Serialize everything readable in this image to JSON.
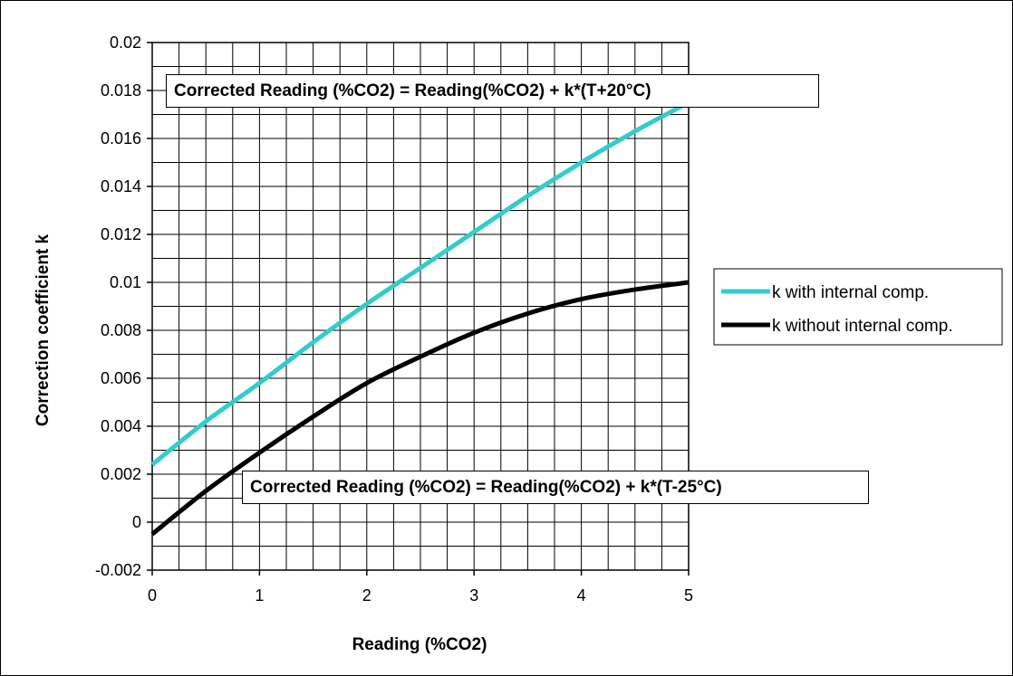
{
  "chart_data": {
    "type": "line",
    "xlabel": "Reading (%CO2)",
    "ylabel": "Correction coefficient k",
    "xlim": [
      0,
      5
    ],
    "ylim": [
      -0.002,
      0.02
    ],
    "x_ticks": [
      "0",
      "1",
      "2",
      "3",
      "4",
      "5"
    ],
    "y_ticks": [
      "-0.002",
      "0",
      "0.002",
      "0.004",
      "0.006",
      "0.008",
      "0.01",
      "0.012",
      "0.014",
      "0.016",
      "0.018",
      "0.02"
    ],
    "grid": true,
    "legend_position": "right",
    "series": [
      {
        "name": "k with internal comp.",
        "color": "#33CCCC",
        "x": [
          0,
          0.5,
          1,
          1.5,
          2,
          2.5,
          3,
          3.5,
          4,
          4.5,
          5
        ],
        "values": [
          0.0024,
          0.0042,
          0.0058,
          0.0075,
          0.0091,
          0.0106,
          0.0121,
          0.0136,
          0.015,
          0.0163,
          0.0175
        ]
      },
      {
        "name": "k without internal comp.",
        "color": "#000000",
        "x": [
          0,
          0.5,
          1,
          1.5,
          2,
          2.5,
          3,
          3.5,
          4,
          4.5,
          5
        ],
        "values": [
          -0.0005,
          0.0013,
          0.0029,
          0.0044,
          0.0058,
          0.0069,
          0.0079,
          0.0087,
          0.0093,
          0.0097,
          0.01
        ]
      }
    ],
    "annotations": [
      "Corrected Reading (%CO2) = Reading(%CO2) + k*(T+20°C)",
      "Corrected Reading (%CO2) = Reading(%CO2) + k*(T-25°C)"
    ]
  }
}
